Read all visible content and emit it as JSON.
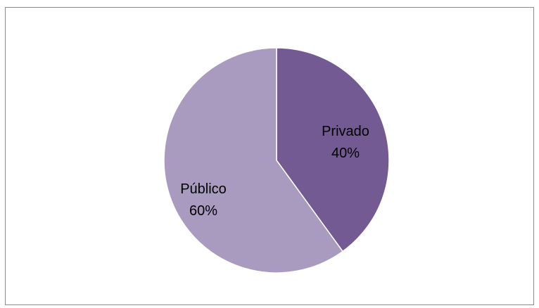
{
  "chart_data": {
    "type": "pie",
    "title": "",
    "legend": "none",
    "slices": [
      {
        "label": "Privado",
        "value": 40,
        "value_label": "40%",
        "color": "#735a93"
      },
      {
        "label": "Público",
        "value": 60,
        "value_label": "60%",
        "color": "#a89bbf"
      }
    ]
  }
}
